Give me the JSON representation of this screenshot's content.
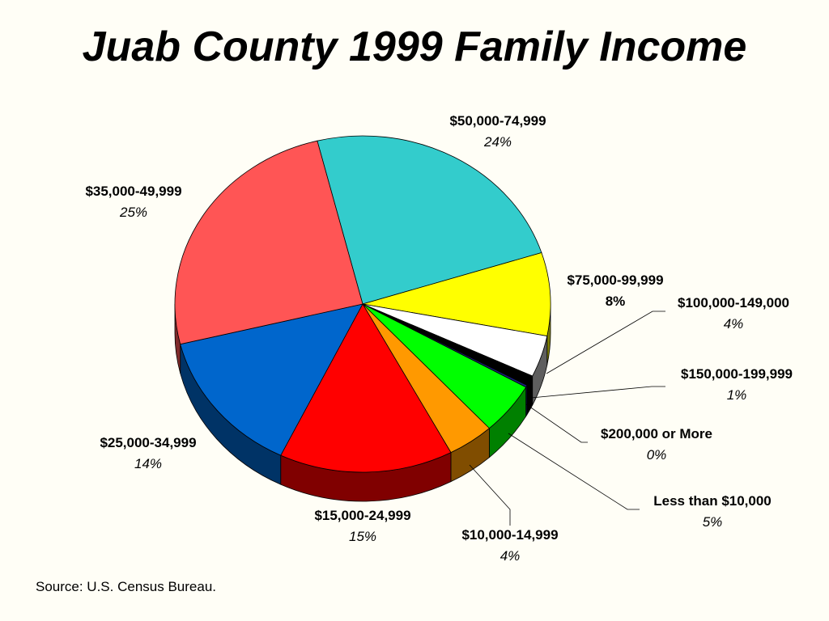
{
  "title": "Juab County 1999 Family Income",
  "source": "Source: U.S. Census Bureau.",
  "chart_data": {
    "type": "pie",
    "title": "Juab County 1999 Family Income",
    "slices": [
      {
        "label": "$50,000-74,999",
        "pct_label": "24%",
        "value": 24,
        "color": "#33cccc",
        "italic_pct": true
      },
      {
        "label": "$75,000-99,999",
        "pct_label": "8%",
        "value": 8,
        "color": "#ffff00",
        "italic_pct": false
      },
      {
        "label": "$100,000-149,000",
        "pct_label": "4%",
        "value": 4,
        "color": "#ffffff",
        "italic_pct": true
      },
      {
        "label": "$150,000-199,999",
        "pct_label": "1%",
        "value": 1,
        "color": "#000000",
        "italic_pct": true
      },
      {
        "label": "$200,000 or More",
        "pct_label": "0%",
        "value": 0.2,
        "color": "#1a237e",
        "italic_pct": true
      },
      {
        "label": "Less than $10,000",
        "pct_label": "5%",
        "value": 5,
        "color": "#00ff00",
        "italic_pct": true
      },
      {
        "label": "$10,000-14,999",
        "pct_label": "4%",
        "value": 4,
        "color": "#ff9900",
        "italic_pct": true
      },
      {
        "label": "$15,000-24,999",
        "pct_label": "15%",
        "value": 15,
        "color": "#ff0000",
        "italic_pct": true
      },
      {
        "label": "$25,000-34,999",
        "pct_label": "14%",
        "value": 14,
        "color": "#0066cc",
        "italic_pct": true
      },
      {
        "label": "$35,000-49,999",
        "pct_label": "25%",
        "value": 25,
        "color": "#ff5555",
        "italic_pct": true
      }
    ]
  }
}
